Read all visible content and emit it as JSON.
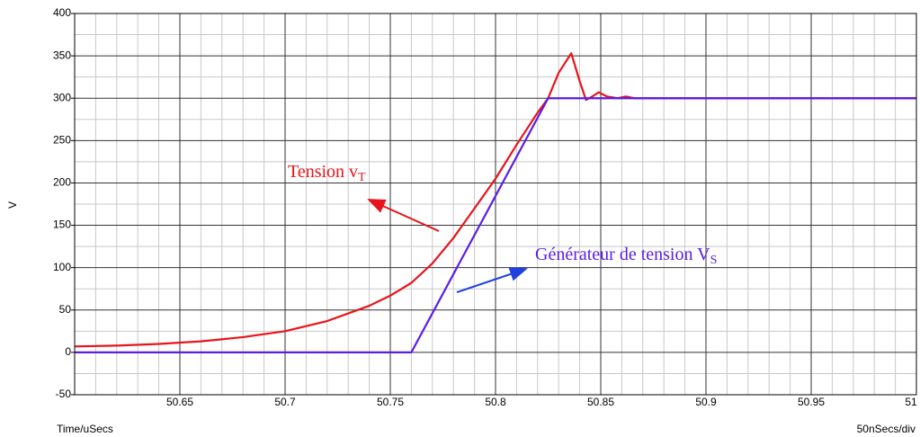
{
  "chart_data": {
    "type": "line",
    "ylabel": "V",
    "xlabel": "Time/uSecs",
    "scale_note": "50nSecs/div",
    "xlim": [
      50.6,
      51
    ],
    "ylim": [
      -50,
      400
    ],
    "xticks": [
      50.65,
      50.7,
      50.75,
      50.8,
      50.85,
      50.9,
      50.95,
      51
    ],
    "yticks": [
      -50,
      0,
      50,
      100,
      150,
      200,
      250,
      300,
      350,
      400
    ],
    "xminorticks": [
      50.61,
      50.62,
      50.63,
      50.64,
      50.66,
      50.67,
      50.68,
      50.69,
      50.71,
      50.72,
      50.73,
      50.74,
      50.76,
      50.77,
      50.78,
      50.79,
      50.81,
      50.82,
      50.83,
      50.84,
      50.86,
      50.87,
      50.88,
      50.89,
      50.91,
      50.92,
      50.93,
      50.94,
      50.96,
      50.97,
      50.98,
      50.99
    ],
    "yminorticks": [
      -25,
      25,
      75,
      125,
      175,
      225,
      275,
      325,
      375
    ],
    "grid": true,
    "series": [
      {
        "name": "Tension v",
        "subscript": "T",
        "color": "#e8141b",
        "x": [
          50.6,
          50.62,
          50.64,
          50.66,
          50.68,
          50.7,
          50.72,
          50.74,
          50.75,
          50.76,
          50.77,
          50.78,
          50.79,
          50.8,
          50.81,
          50.82,
          50.825,
          50.83,
          50.836,
          50.84,
          50.843,
          50.846,
          50.849,
          50.853,
          50.858,
          50.862,
          50.866,
          51
        ],
        "values": [
          7,
          8,
          10,
          13,
          18,
          25,
          37,
          55,
          67,
          82,
          105,
          135,
          170,
          205,
          245,
          283,
          300,
          330,
          353,
          320,
          298,
          302,
          307,
          302,
          300,
          302,
          300,
          300
        ]
      },
      {
        "name": "Générateur de tension V",
        "subscript": "S",
        "color": "#5a1ee6",
        "x": [
          50.6,
          50.76,
          50.825,
          51
        ],
        "values": [
          0,
          0,
          300,
          300
        ]
      }
    ]
  }
}
